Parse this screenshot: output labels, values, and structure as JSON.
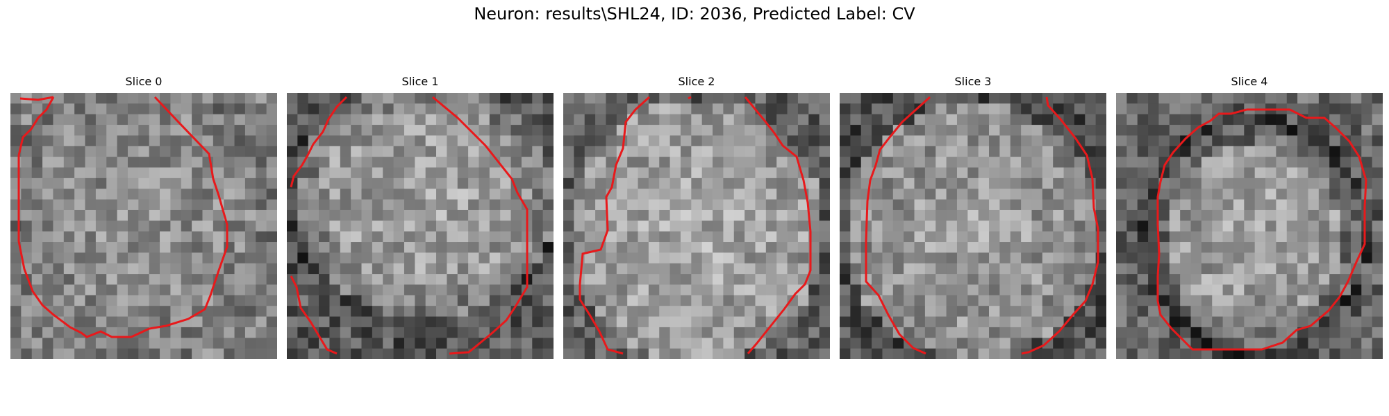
{
  "figure": {
    "title": "Neuron: results\\SHL24, ID: 2036, Predicted Label: CV"
  },
  "panels": [
    {
      "title": "Slice 0"
    },
    {
      "title": "Slice 1"
    },
    {
      "title": "Slice 2"
    },
    {
      "title": "Slice 3"
    },
    {
      "title": "Slice 4"
    }
  ],
  "colors": {
    "contour": "#e8191b",
    "background": "#ffffff",
    "text": "#000000"
  }
}
